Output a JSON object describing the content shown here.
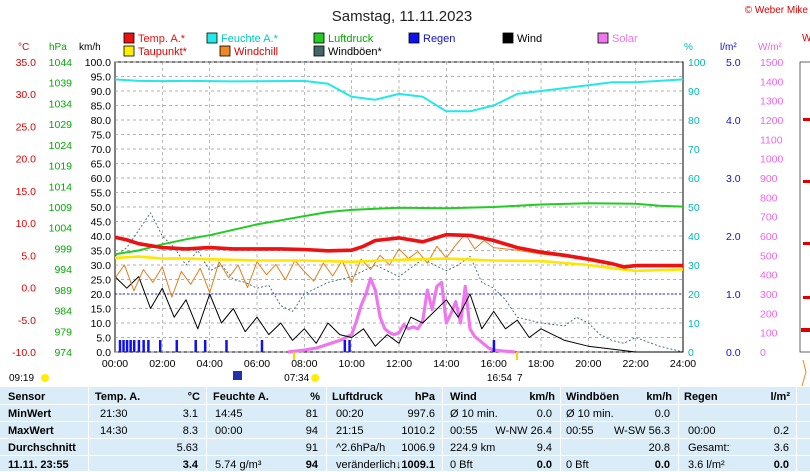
{
  "title": "Samstag, 11.11.2023",
  "copyright": "© Weber Mike",
  "legend": [
    {
      "label": "Temp. A.*",
      "color": "#ee1111"
    },
    {
      "label": "Feuchte A.*",
      "color": "#22e8e8"
    },
    {
      "label": "Luftdruck",
      "color": "#22cc22"
    },
    {
      "label": "Regen",
      "color": "#1111ee"
    },
    {
      "label": "Wind",
      "color": "#000000"
    },
    {
      "label": "Solar",
      "color": "#ee77ee"
    },
    {
      "label": "Taupunkt*",
      "color": "#ffee00"
    },
    {
      "label": "Windchill",
      "color": "#ee8822"
    },
    {
      "label": "Windböen*",
      "color": "#446666"
    }
  ],
  "axis_units": {
    "temp": "°C",
    "press": "hPa",
    "wind": "km/h",
    "hum": "%",
    "rain": "l/m²",
    "solar": "W/m²",
    "edge": "W"
  },
  "chart_data": {
    "type": "line",
    "x_ticks": [
      "00:00",
      "02:00",
      "04:00",
      "06:00",
      "08:00",
      "10:00",
      "12:00",
      "14:00",
      "16:00",
      "18:00",
      "20:00",
      "22:00",
      "24:00"
    ],
    "temp_ticks": [
      "35.0",
      "30.0",
      "25.0",
      "20.0",
      "15.0",
      "10.0",
      "5.0",
      "0.0",
      "-5.0",
      "-10.0"
    ],
    "press_ticks": [
      "1044",
      "1039",
      "1034",
      "1029",
      "1024",
      "1019",
      "1014",
      "1009",
      "1004",
      "999",
      "994",
      "989",
      "984",
      "979",
      "974"
    ],
    "wind_ticks": [
      "100.0",
      "95.0",
      "90.0",
      "85.0",
      "80.0",
      "75.0",
      "70.0",
      "65.0",
      "60.0",
      "55.0",
      "50.0",
      "45.0",
      "40.0",
      "35.0",
      "30.0",
      "25.0",
      "20.0",
      "15.0",
      "10.0",
      "5.0",
      "0.0"
    ],
    "hum_ticks": [
      "100",
      "90",
      "80",
      "70",
      "60",
      "50",
      "40",
      "30",
      "20",
      "10",
      "0"
    ],
    "rain_ticks": [
      "5.0",
      "4.0",
      "3.0",
      "2.0",
      "1.0",
      "0.0"
    ],
    "solar_ticks": [
      "1500",
      "1400",
      "1300",
      "1200",
      "1100",
      "1000",
      "900",
      "800",
      "700",
      "600",
      "500",
      "400",
      "300",
      "200",
      "100",
      "0"
    ],
    "sun_events": {
      "sunrise": "07:34",
      "sunset": "16:54",
      "left_time": "09:19",
      "moon_day": "7"
    },
    "series": [
      {
        "name": "Temp. A.*",
        "axis": "temp",
        "x": [
          0,
          0.5,
          1,
          2,
          3,
          4,
          5,
          6,
          7,
          8,
          9,
          10,
          10.5,
          11,
          12,
          13,
          14,
          15,
          16,
          17,
          18,
          19,
          20,
          21,
          21.5,
          22,
          23,
          24
        ],
        "y": [
          7.8,
          7.4,
          6.8,
          6.2,
          6.0,
          6.2,
          6.0,
          6.0,
          6.0,
          5.9,
          5.7,
          5.8,
          6.4,
          7.3,
          7.7,
          7.1,
          8.2,
          8.1,
          7.3,
          6.2,
          5.5,
          5.0,
          4.4,
          3.7,
          3.2,
          3.4,
          3.4,
          3.4
        ]
      },
      {
        "name": "Taupunkt*",
        "axis": "temp",
        "x": [
          0,
          1,
          2,
          3,
          4,
          6,
          8,
          10,
          12,
          14,
          16,
          18,
          20,
          21,
          22,
          24
        ],
        "y": [
          4.6,
          4.8,
          4.5,
          4.5,
          4.4,
          4.2,
          4.2,
          4.0,
          4.3,
          4.5,
          4.2,
          4.1,
          3.5,
          3.0,
          2.6,
          2.8
        ]
      },
      {
        "name": "Feuchte A.*",
        "axis": "hum",
        "x": [
          0,
          1,
          2,
          3,
          4,
          5,
          8,
          9,
          10,
          11,
          12,
          13,
          14,
          15,
          16,
          17,
          18,
          19,
          20,
          21,
          22,
          23,
          24
        ],
        "y": [
          94,
          93.5,
          93.4,
          93.5,
          93.4,
          93.3,
          93.5,
          92.5,
          88,
          87,
          89,
          88,
          83,
          83,
          85,
          89,
          90,
          91,
          92,
          93,
          93,
          93.5,
          94
        ]
      },
      {
        "name": "Luftdruck",
        "axis": "press",
        "x": [
          0,
          1,
          2,
          3,
          4,
          5,
          6,
          7,
          8,
          9,
          10,
          11,
          12,
          14,
          16,
          18,
          20,
          22,
          23,
          24
        ],
        "y": [
          997.6,
          998.5,
          1000,
          1001.2,
          1002.2,
          1003.5,
          1004.8,
          1005.8,
          1006.8,
          1007.8,
          1008.3,
          1008.6,
          1008.8,
          1008.7,
          1009.0,
          1009.6,
          1009.9,
          1009.8,
          1009.3,
          1009.1
        ]
      },
      {
        "name": "Wind",
        "axis": "wind",
        "x": [
          0,
          0.5,
          1,
          1.5,
          2,
          2.5,
          3,
          3.5,
          4,
          4.5,
          5,
          5.5,
          6,
          6.5,
          7,
          7.5,
          8,
          8.5,
          9,
          9.5,
          10,
          10.5,
          11,
          11.5,
          12,
          12.5,
          13,
          13.5,
          14,
          14.5,
          15,
          15.5,
          16,
          16.5,
          17,
          17.5,
          18,
          19,
          20,
          21,
          22,
          23,
          24
        ],
        "y": [
          26,
          22,
          26,
          15,
          22,
          12,
          18,
          8,
          20,
          10,
          15,
          7,
          12,
          6,
          10,
          4,
          8,
          3,
          10,
          6,
          5,
          8,
          2,
          6,
          3,
          12,
          10,
          14,
          18,
          12,
          20,
          8,
          14,
          8,
          11,
          5,
          8,
          4,
          2,
          1,
          0,
          0,
          0
        ]
      },
      {
        "name": "Windböen*",
        "axis": "wind",
        "x": [
          0,
          0.5,
          1,
          1.5,
          2,
          2.5,
          3,
          3.5,
          4,
          4.5,
          5,
          5.5,
          6,
          6.5,
          7,
          7.5,
          8,
          9,
          10,
          11,
          12,
          13,
          14,
          14.5,
          15,
          15.5,
          16,
          16.5,
          17,
          18,
          19,
          19.5,
          20,
          20.5,
          21,
          21.5,
          22,
          23,
          24
        ],
        "y": [
          33,
          36,
          42,
          48,
          40,
          36,
          30,
          35,
          28,
          30,
          25,
          24,
          22,
          23,
          16,
          14,
          20,
          24,
          26,
          30,
          26,
          32,
          28,
          30,
          33,
          24,
          22,
          18,
          12,
          10,
          9,
          12,
          10,
          6,
          4,
          3,
          5,
          2,
          0
        ]
      },
      {
        "name": "Windchill",
        "axis": "temp",
        "x": [
          0,
          0.4,
          0.8,
          1.2,
          1.6,
          2,
          2.4,
          2.8,
          3.2,
          3.6,
          4,
          4.4,
          4.8,
          5.2,
          5.6,
          6,
          6.4,
          6.8,
          7.2,
          7.6,
          8,
          8.4,
          8.8,
          9.2,
          9.6,
          10,
          10.4,
          10.8,
          11.2,
          11.6,
          12,
          12.4,
          12.8,
          13.2,
          13.6,
          14,
          14.4,
          14.8,
          15.2,
          15.6,
          16,
          17,
          18,
          19,
          20,
          21,
          22,
          23,
          24
        ],
        "y": [
          1.5,
          3.5,
          -0.5,
          2.8,
          0.8,
          3.2,
          -1.5,
          2.5,
          0.5,
          3.0,
          -0.8,
          4.0,
          1.5,
          3.5,
          0.0,
          4.0,
          2.0,
          3.6,
          1.2,
          4.2,
          2.5,
          1.0,
          3.8,
          1.8,
          4.2,
          0.8,
          4.4,
          2.8,
          5.0,
          3.5,
          6.0,
          4.5,
          5.6,
          3.8,
          6.4,
          4.6,
          6.6,
          8.3,
          6.0,
          7.3,
          6.2,
          5.8,
          5.2,
          4.8,
          4.4,
          3.7,
          3.2,
          3.4,
          3.4
        ]
      },
      {
        "name": "Solar",
        "axis": "solar",
        "x": [
          7.3,
          8.0,
          8.5,
          9.0,
          9.5,
          10.0,
          10.2,
          10.4,
          10.6,
          10.8,
          11.0,
          11.2,
          11.4,
          11.6,
          11.8,
          12.0,
          12.2,
          12.4,
          12.6,
          12.8,
          13.0,
          13.2,
          13.4,
          13.6,
          13.8,
          14.0,
          14.2,
          14.4,
          14.6,
          14.8,
          15.0,
          15.2,
          15.4,
          15.6,
          15.8,
          16.0,
          16.4,
          16.9
        ],
        "y": [
          0,
          10,
          20,
          40,
          60,
          90,
          160,
          240,
          300,
          380,
          320,
          180,
          120,
          100,
          90,
          100,
          140,
          120,
          130,
          120,
          160,
          320,
          220,
          340,
          360,
          150,
          200,
          260,
          150,
          340,
          120,
          80,
          60,
          40,
          20,
          10,
          5,
          0
        ]
      }
    ],
    "rain_bar_times": [
      0.2,
      0.35,
      0.5,
      0.65,
      0.8,
      1.0,
      1.2,
      1.4,
      1.9,
      2.6,
      3.4,
      3.8,
      4.7,
      6.2,
      9.7,
      9.9,
      16.0
    ]
  },
  "stats_table": {
    "headers": {
      "sensor": "Sensor",
      "temp": "Temp. A.",
      "temp_unit": "°C",
      "hum": "Feuchte A.",
      "hum_unit": "%",
      "press": "Luftdruck",
      "press_unit": "hPa",
      "wind": "Wind",
      "wind_unit": "km/h",
      "gust": "Windböen",
      "gust_unit": "km/h",
      "rain": "Regen",
      "rain_unit": "l/m²"
    },
    "rows": [
      {
        "label": "MinWert",
        "temp_time": "21:30",
        "temp_val": "3.1",
        "hum_time": "14:45",
        "hum_val": "81",
        "press_time": "00:20",
        "press_val": "997.6",
        "wind_a": "Ø 10 min.",
        "wind_b": "",
        "wind_val": "0.0",
        "gust_a": "Ø 10 min.",
        "gust_b": "",
        "gust_val": "0.0",
        "rain_a": "",
        "rain_val": ""
      },
      {
        "label": "MaxWert",
        "temp_time": "14:30",
        "temp_val": "8.3",
        "hum_time": "00:00",
        "hum_val": "94",
        "press_time": "21:15",
        "press_val": "1010.2",
        "wind_a": "00:55",
        "wind_b": "W-NW 26.4",
        "wind_val": "",
        "gust_a": "00:55",
        "gust_b": "W-SW 56.3",
        "gust_val": "",
        "rain_a": "00:00",
        "rain_val": "0.2"
      },
      {
        "label": "Durchschnitt",
        "temp_time": "",
        "temp_val": "5.63",
        "hum_time": "",
        "hum_val": "91",
        "press_time": "^2.6hPa/h",
        "press_val": "1006.9",
        "wind_a": "224.9 km",
        "wind_b": "",
        "wind_val": "9.4",
        "gust_a": "",
        "gust_b": "",
        "gust_val": "20.8",
        "rain_a": "Gesamt:",
        "rain_val": "3.6"
      },
      {
        "label": "11.11. 23:55",
        "temp_time": "",
        "temp_val": "3.4",
        "hum_time": "5.74 g/m³",
        "hum_val": "94",
        "press_time": "veränderlich",
        "press_val": "↓1009.1",
        "wind_a": "0 Bft",
        "wind_b": "",
        "wind_val": "0.0",
        "gust_a": "0 Bft",
        "gust_b": "",
        "gust_val": "0.0",
        "rain_a": "3.6 l/m²",
        "rain_val": "0.0"
      }
    ]
  }
}
